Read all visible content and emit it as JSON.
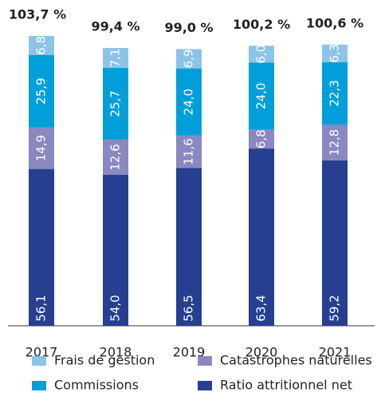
{
  "chart_data": {
    "type": "stacked-bar",
    "categories": [
      "2017",
      "2018",
      "2019",
      "2020",
      "2021"
    ],
    "series": [
      {
        "name": "Ratio attritionnel net",
        "color": "#263f90",
        "values": [
          56.1,
          54.0,
          56.5,
          63.4,
          59.2
        ],
        "value_labels": [
          "56,1",
          "54,0",
          "56,5",
          "63,4",
          "59,2"
        ]
      },
      {
        "name": "Catastrophes naturelles",
        "color": "#8a88c0",
        "values": [
          14.9,
          12.6,
          11.6,
          6.8,
          12.8
        ],
        "value_labels": [
          "14,9",
          "12,6",
          "11,6",
          "6,8",
          "12,8"
        ]
      },
      {
        "name": "Commissions",
        "color": "#009fda",
        "values": [
          25.9,
          25.7,
          24.0,
          24.0,
          22.3
        ],
        "value_labels": [
          "25,9",
          "25,7",
          "24,0",
          "24,0",
          "22,3"
        ]
      },
      {
        "name": "Frais de gestion",
        "color": "#8cc4e8",
        "values": [
          6.8,
          7.1,
          6.9,
          6.0,
          6.3
        ],
        "value_labels": [
          "6,8",
          "7,1",
          "6,9",
          "6,0",
          "6,3"
        ]
      }
    ],
    "totals": {
      "values": [
        103.7,
        99.4,
        99.0,
        100.2,
        100.6
      ],
      "value_labels": [
        "103,7 %",
        "99,4 %",
        "99,0 %",
        "100,2 %",
        "100,6 %"
      ]
    }
  }
}
